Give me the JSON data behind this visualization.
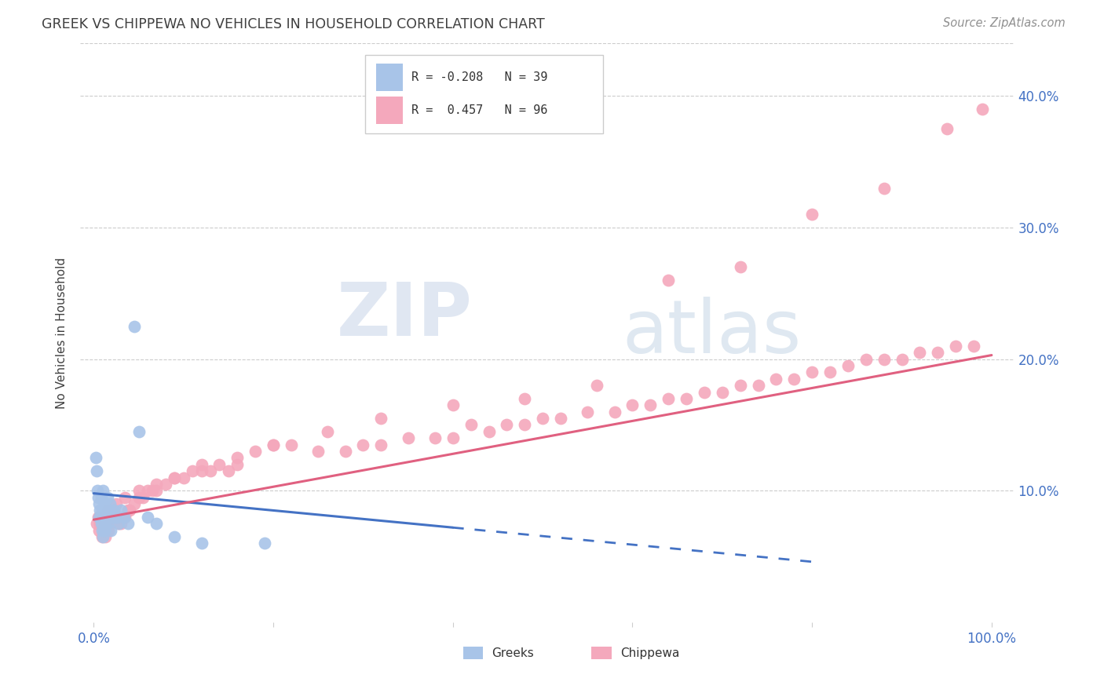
{
  "title": "GREEK VS CHIPPEWA NO VEHICLES IN HOUSEHOLD CORRELATION CHART",
  "source": "Source: ZipAtlas.com",
  "ylabel": "No Vehicles in Household",
  "xlim": [
    0.0,
    1.0
  ],
  "ylim": [
    0.0,
    0.44
  ],
  "ytick_values": [
    0.1,
    0.2,
    0.3,
    0.4
  ],
  "ytick_labels": [
    "10.0%",
    "20.0%",
    "30.0%",
    "40.0%"
  ],
  "xtick_values": [
    0.0,
    0.2,
    0.4,
    0.6,
    0.8,
    1.0
  ],
  "xtick_labels": [
    "0.0%",
    "",
    "",
    "",
    "",
    "100.0%"
  ],
  "greek_color": "#a8c4e8",
  "chippewa_color": "#f4a8bc",
  "greek_line_color": "#4472c4",
  "chippewa_line_color": "#e06080",
  "title_color": "#404040",
  "source_color": "#909090",
  "axis_label_color": "#404040",
  "tick_color": "#4472c4",
  "greek_r": -0.208,
  "greek_n": 39,
  "chippewa_r": 0.457,
  "chippewa_n": 96,
  "greek_line_x0": 0.0,
  "greek_line_x_solid_end": 0.4,
  "greek_line_x_dash_end": 0.8,
  "greek_line_y0": 0.098,
  "greek_line_slope": -0.065,
  "chippewa_line_y0": 0.078,
  "chippewa_line_slope": 0.125,
  "greek_x": [
    0.002,
    0.003,
    0.004,
    0.005,
    0.006,
    0.006,
    0.007,
    0.008,
    0.008,
    0.009,
    0.009,
    0.01,
    0.01,
    0.011,
    0.012,
    0.012,
    0.013,
    0.014,
    0.015,
    0.015,
    0.016,
    0.017,
    0.018,
    0.019,
    0.02,
    0.022,
    0.024,
    0.026,
    0.028,
    0.03,
    0.034,
    0.038,
    0.045,
    0.05,
    0.06,
    0.07,
    0.09,
    0.12,
    0.19
  ],
  "greek_y": [
    0.125,
    0.115,
    0.1,
    0.095,
    0.09,
    0.08,
    0.085,
    0.095,
    0.075,
    0.085,
    0.07,
    0.1,
    0.065,
    0.08,
    0.09,
    0.07,
    0.075,
    0.085,
    0.095,
    0.075,
    0.085,
    0.08,
    0.09,
    0.07,
    0.08,
    0.085,
    0.08,
    0.08,
    0.075,
    0.085,
    0.08,
    0.075,
    0.225,
    0.145,
    0.08,
    0.075,
    0.065,
    0.06,
    0.06
  ],
  "chippewa_x": [
    0.003,
    0.005,
    0.006,
    0.007,
    0.008,
    0.009,
    0.01,
    0.011,
    0.012,
    0.013,
    0.014,
    0.015,
    0.016,
    0.018,
    0.02,
    0.022,
    0.025,
    0.028,
    0.03,
    0.032,
    0.035,
    0.038,
    0.04,
    0.045,
    0.05,
    0.055,
    0.06,
    0.065,
    0.07,
    0.08,
    0.09,
    0.1,
    0.11,
    0.12,
    0.13,
    0.14,
    0.15,
    0.16,
    0.18,
    0.2,
    0.22,
    0.25,
    0.28,
    0.3,
    0.32,
    0.35,
    0.38,
    0.4,
    0.42,
    0.44,
    0.46,
    0.48,
    0.5,
    0.52,
    0.55,
    0.58,
    0.6,
    0.62,
    0.64,
    0.66,
    0.68,
    0.7,
    0.72,
    0.74,
    0.76,
    0.78,
    0.8,
    0.82,
    0.84,
    0.86,
    0.88,
    0.9,
    0.92,
    0.94,
    0.96,
    0.98,
    0.015,
    0.025,
    0.035,
    0.05,
    0.07,
    0.09,
    0.12,
    0.16,
    0.2,
    0.26,
    0.32,
    0.4,
    0.48,
    0.56,
    0.64,
    0.72,
    0.8,
    0.88,
    0.95,
    0.99
  ],
  "chippewa_y": [
    0.075,
    0.08,
    0.07,
    0.075,
    0.08,
    0.065,
    0.08,
    0.07,
    0.075,
    0.065,
    0.075,
    0.08,
    0.07,
    0.075,
    0.08,
    0.085,
    0.08,
    0.075,
    0.075,
    0.08,
    0.08,
    0.085,
    0.085,
    0.09,
    0.095,
    0.095,
    0.1,
    0.1,
    0.1,
    0.105,
    0.11,
    0.11,
    0.115,
    0.115,
    0.115,
    0.12,
    0.115,
    0.12,
    0.13,
    0.135,
    0.135,
    0.13,
    0.13,
    0.135,
    0.135,
    0.14,
    0.14,
    0.14,
    0.15,
    0.145,
    0.15,
    0.15,
    0.155,
    0.155,
    0.16,
    0.16,
    0.165,
    0.165,
    0.17,
    0.17,
    0.175,
    0.175,
    0.18,
    0.18,
    0.185,
    0.185,
    0.19,
    0.19,
    0.195,
    0.2,
    0.2,
    0.2,
    0.205,
    0.205,
    0.21,
    0.21,
    0.085,
    0.09,
    0.095,
    0.1,
    0.105,
    0.11,
    0.12,
    0.125,
    0.135,
    0.145,
    0.155,
    0.165,
    0.17,
    0.18,
    0.26,
    0.27,
    0.31,
    0.33,
    0.375,
    0.39
  ]
}
